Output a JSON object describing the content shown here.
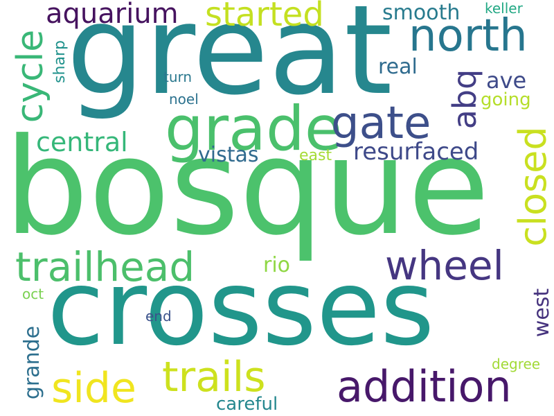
{
  "words": {
    "bosque": "bosque",
    "great": "great",
    "crosses": "crosses",
    "grade": "grade",
    "gate": "gate",
    "north": "north",
    "trailhead": "trailhead",
    "wheel": "wheel",
    "addition": "addition",
    "trails": "trails",
    "side": "side",
    "closed": "closed",
    "cycle": "cycle",
    "started": "started",
    "aquarium": "aquarium",
    "abq": "abq",
    "central": "central",
    "resurfaced": "resurfaced",
    "vistas": "vistas",
    "smooth": "smooth",
    "real": "real",
    "ave": "ave",
    "going": "going",
    "rio": "rio",
    "grande": "grande",
    "west": "west",
    "careful": "careful",
    "sharp": "sharp",
    "turn": "turn",
    "noel": "noel",
    "east": "east",
    "keller": "keller",
    "oct": "oct",
    "end": "end",
    "degree": "degree"
  },
  "colors": {
    "bosque": "#4cc26c",
    "great": "#26878e",
    "crosses": "#21968b",
    "grade": "#4ac06c",
    "gate": "#3d4f8a",
    "north": "#27768e",
    "trailhead": "#4cbf6b",
    "wheel": "#453681",
    "addition": "#47186a",
    "trails": "#cde11e",
    "side": "#f0e51f",
    "closed": "#c9e020",
    "cycle": "#39b777",
    "started": "#c4e021",
    "aquarium": "#46135f",
    "abq": "#433e85",
    "central": "#35b779",
    "resurfaced": "#3e4989",
    "vistas": "#306a8e",
    "smooth": "#287b8e",
    "real": "#2f6b8e",
    "ave": "#3e4a89",
    "going": "#b5de2b",
    "rio": "#8fd744",
    "grande": "#2d6f8e",
    "west": "#46337e",
    "careful": "#24878e",
    "sharp": "#20928c",
    "turn": "#2a788e",
    "noel": "#2c728e",
    "east": "#a5db36",
    "keller": "#22a884",
    "oct": "#7ad151",
    "end": "#3b528b",
    "degree": "#a2da37"
  }
}
